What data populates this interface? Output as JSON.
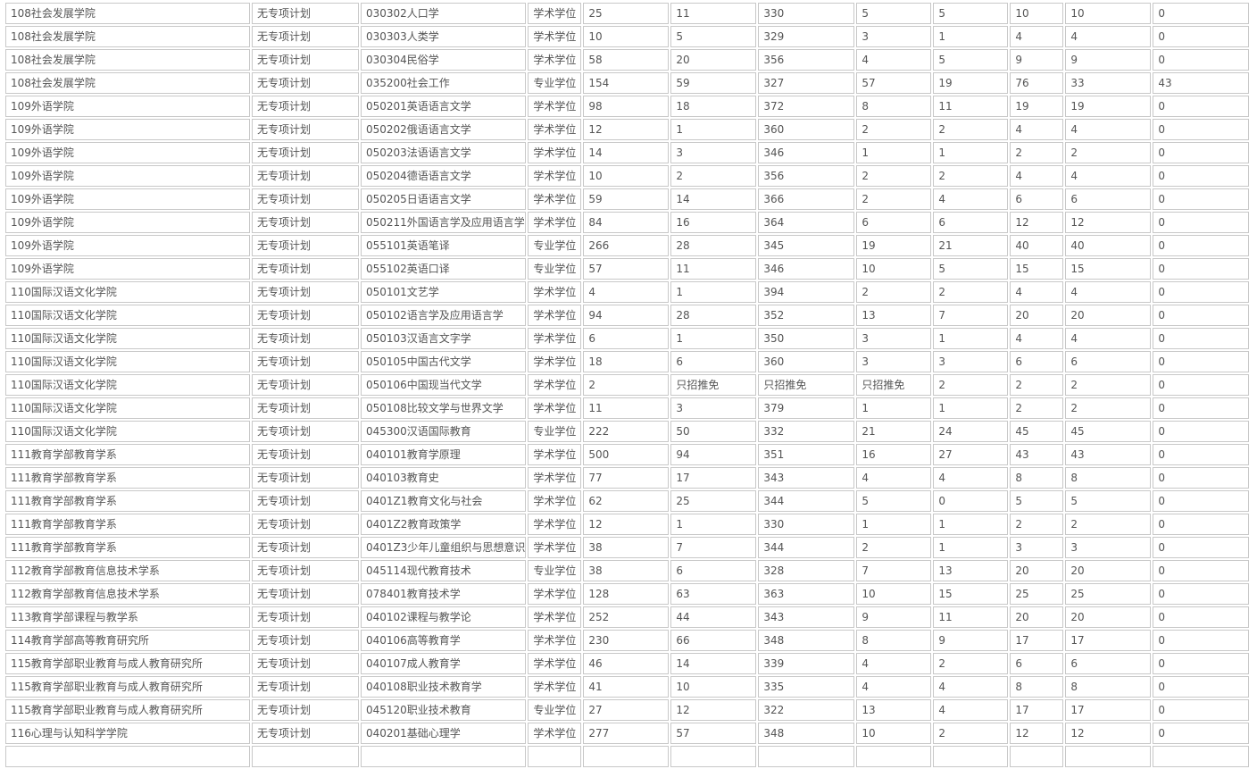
{
  "rows": [
    [
      "108社会发展学院",
      "无专项计划",
      "030302人口学",
      "学术学位",
      "25",
      "11",
      "330",
      "5",
      "5",
      "10",
      "10",
      "0"
    ],
    [
      "108社会发展学院",
      "无专项计划",
      "030303人类学",
      "学术学位",
      "10",
      "5",
      "329",
      "3",
      "1",
      "4",
      "4",
      "0"
    ],
    [
      "108社会发展学院",
      "无专项计划",
      "030304民俗学",
      "学术学位",
      "58",
      "20",
      "356",
      "4",
      "5",
      "9",
      "9",
      "0"
    ],
    [
      "108社会发展学院",
      "无专项计划",
      "035200社会工作",
      "专业学位",
      "154",
      "59",
      "327",
      "57",
      "19",
      "76",
      "33",
      "43"
    ],
    [
      "109外语学院",
      "无专项计划",
      "050201英语语言文学",
      "学术学位",
      "98",
      "18",
      "372",
      "8",
      "11",
      "19",
      "19",
      "0"
    ],
    [
      "109外语学院",
      "无专项计划",
      "050202俄语语言文学",
      "学术学位",
      "12",
      "1",
      "360",
      "2",
      "2",
      "4",
      "4",
      "0"
    ],
    [
      "109外语学院",
      "无专项计划",
      "050203法语语言文学",
      "学术学位",
      "14",
      "3",
      "346",
      "1",
      "1",
      "2",
      "2",
      "0"
    ],
    [
      "109外语学院",
      "无专项计划",
      "050204德语语言文学",
      "学术学位",
      "10",
      "2",
      "356",
      "2",
      "2",
      "4",
      "4",
      "0"
    ],
    [
      "109外语学院",
      "无专项计划",
      "050205日语语言文学",
      "学术学位",
      "59",
      "14",
      "366",
      "2",
      "4",
      "6",
      "6",
      "0"
    ],
    [
      "109外语学院",
      "无专项计划",
      "050211外国语言学及应用语言学",
      "学术学位",
      "84",
      "16",
      "364",
      "6",
      "6",
      "12",
      "12",
      "0"
    ],
    [
      "109外语学院",
      "无专项计划",
      "055101英语笔译",
      "专业学位",
      "266",
      "28",
      "345",
      "19",
      "21",
      "40",
      "40",
      "0"
    ],
    [
      "109外语学院",
      "无专项计划",
      "055102英语口译",
      "专业学位",
      "57",
      "11",
      "346",
      "10",
      "5",
      "15",
      "15",
      "0"
    ],
    [
      "110国际汉语文化学院",
      "无专项计划",
      "050101文艺学",
      "学术学位",
      "4",
      "1",
      "394",
      "2",
      "2",
      "4",
      "4",
      "0"
    ],
    [
      "110国际汉语文化学院",
      "无专项计划",
      "050102语言学及应用语言学",
      "学术学位",
      "94",
      "28",
      "352",
      "13",
      "7",
      "20",
      "20",
      "0"
    ],
    [
      "110国际汉语文化学院",
      "无专项计划",
      "050103汉语言文字学",
      "学术学位",
      "6",
      "1",
      "350",
      "3",
      "1",
      "4",
      "4",
      "0"
    ],
    [
      "110国际汉语文化学院",
      "无专项计划",
      "050105中国古代文学",
      "学术学位",
      "18",
      "6",
      "360",
      "3",
      "3",
      "6",
      "6",
      "0"
    ],
    [
      "110国际汉语文化学院",
      "无专项计划",
      "050106中国现当代文学",
      "学术学位",
      "2",
      "只招推免",
      "只招推免",
      "只招推免",
      "2",
      "2",
      "2",
      "0"
    ],
    [
      "110国际汉语文化学院",
      "无专项计划",
      "050108比较文学与世界文学",
      "学术学位",
      "11",
      "3",
      "379",
      "1",
      "1",
      "2",
      "2",
      "0"
    ],
    [
      "110国际汉语文化学院",
      "无专项计划",
      "045300汉语国际教育",
      "专业学位",
      "222",
      "50",
      "332",
      "21",
      "24",
      "45",
      "45",
      "0"
    ],
    [
      "111教育学部教育学系",
      "无专项计划",
      "040101教育学原理",
      "学术学位",
      "500",
      "94",
      "351",
      "16",
      "27",
      "43",
      "43",
      "0"
    ],
    [
      "111教育学部教育学系",
      "无专项计划",
      "040103教育史",
      "学术学位",
      "77",
      "17",
      "343",
      "4",
      "4",
      "8",
      "8",
      "0"
    ],
    [
      "111教育学部教育学系",
      "无专项计划",
      "0401Z1教育文化与社会",
      "学术学位",
      "62",
      "25",
      "344",
      "5",
      "0",
      "5",
      "5",
      "0"
    ],
    [
      "111教育学部教育学系",
      "无专项计划",
      "0401Z2教育政策学",
      "学术学位",
      "12",
      "1",
      "330",
      "1",
      "1",
      "2",
      "2",
      "0"
    ],
    [
      "111教育学部教育学系",
      "无专项计划",
      "0401Z3少年儿童组织与思想意识",
      "学术学位",
      "38",
      "7",
      "344",
      "2",
      "1",
      "3",
      "3",
      "0"
    ],
    [
      "112教育学部教育信息技术学系",
      "无专项计划",
      "045114现代教育技术",
      "专业学位",
      "38",
      "6",
      "328",
      "7",
      "13",
      "20",
      "20",
      "0"
    ],
    [
      "112教育学部教育信息技术学系",
      "无专项计划",
      "078401教育技术学",
      "学术学位",
      "128",
      "63",
      "363",
      "10",
      "15",
      "25",
      "25",
      "0"
    ],
    [
      "113教育学部课程与教学系",
      "无专项计划",
      "040102课程与教学论",
      "学术学位",
      "252",
      "44",
      "343",
      "9",
      "11",
      "20",
      "20",
      "0"
    ],
    [
      "114教育学部高等教育研究所",
      "无专项计划",
      "040106高等教育学",
      "学术学位",
      "230",
      "66",
      "348",
      "8",
      "9",
      "17",
      "17",
      "0"
    ],
    [
      "115教育学部职业教育与成人教育研究所",
      "无专项计划",
      "040107成人教育学",
      "学术学位",
      "46",
      "14",
      "339",
      "4",
      "2",
      "6",
      "6",
      "0"
    ],
    [
      "115教育学部职业教育与成人教育研究所",
      "无专项计划",
      "040108职业技术教育学",
      "学术学位",
      "41",
      "10",
      "335",
      "4",
      "4",
      "8",
      "8",
      "0"
    ],
    [
      "115教育学部职业教育与成人教育研究所",
      "无专项计划",
      "045120职业技术教育",
      "专业学位",
      "27",
      "12",
      "322",
      "13",
      "4",
      "17",
      "17",
      "0"
    ],
    [
      "116心理与认知科学学院",
      "无专项计划",
      "040201基础心理学",
      "学术学位",
      "277",
      "57",
      "348",
      "10",
      "2",
      "12",
      "12",
      "0"
    ],
    [
      "",
      "",
      "",
      "",
      "",
      "",
      "",
      "",
      "",
      "",
      "",
      ""
    ]
  ]
}
